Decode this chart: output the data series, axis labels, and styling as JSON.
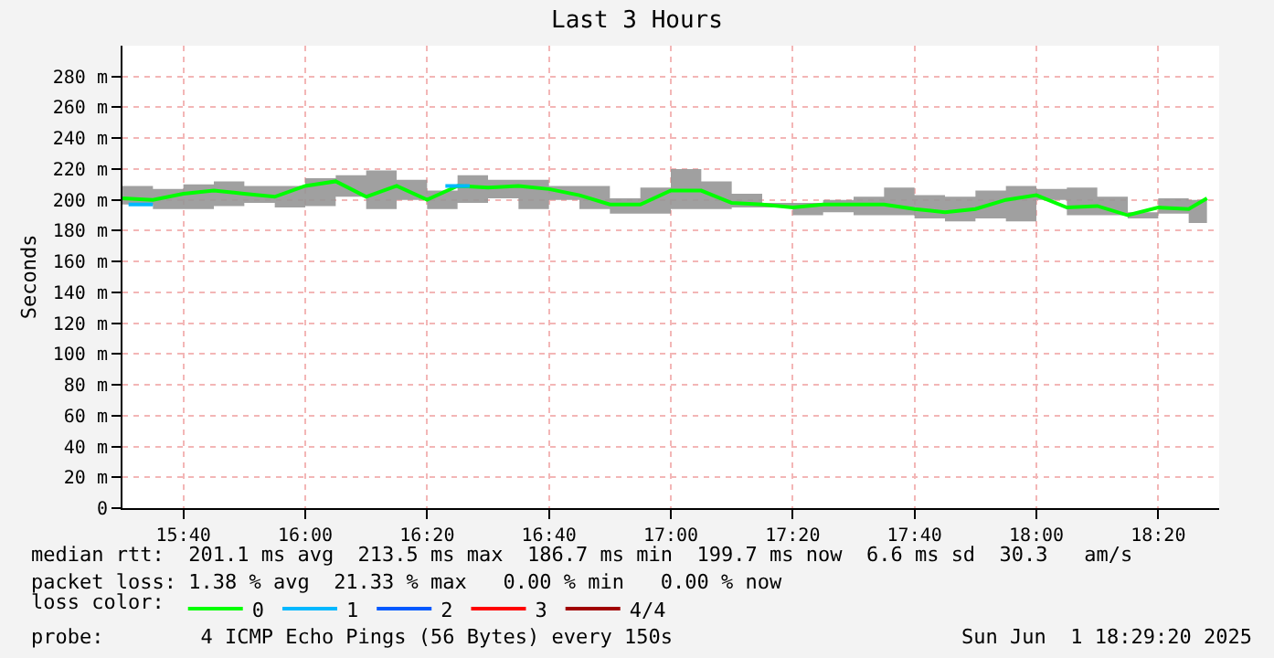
{
  "chart_data": {
    "type": "line",
    "title": "Last 3 Hours",
    "ylabel": "Seconds",
    "x": [
      "2025-06-01T15:30",
      "2025-06-01T15:35",
      "2025-06-01T15:40",
      "2025-06-01T15:45",
      "2025-06-01T15:50",
      "2025-06-01T15:55",
      "2025-06-01T16:00",
      "2025-06-01T16:05",
      "2025-06-01T16:10",
      "2025-06-01T16:15",
      "2025-06-01T16:20",
      "2025-06-01T16:25",
      "2025-06-01T16:30",
      "2025-06-01T16:35",
      "2025-06-01T16:40",
      "2025-06-01T16:45",
      "2025-06-01T16:50",
      "2025-06-01T16:55",
      "2025-06-01T17:00",
      "2025-06-01T17:05",
      "2025-06-01T17:10",
      "2025-06-01T17:15",
      "2025-06-01T17:20",
      "2025-06-01T17:25",
      "2025-06-01T17:30",
      "2025-06-01T17:35",
      "2025-06-01T17:40",
      "2025-06-01T17:45",
      "2025-06-01T17:50",
      "2025-06-01T17:55",
      "2025-06-01T18:00",
      "2025-06-01T18:05",
      "2025-06-01T18:10",
      "2025-06-01T18:15",
      "2025-06-01T18:20",
      "2025-06-01T18:25",
      "2025-06-01T18:28"
    ],
    "series": [
      {
        "name": "0",
        "color": "#00ff00",
        "values": [
          201,
          200,
          204,
          206,
          204,
          202,
          209,
          212,
          202,
          209,
          200,
          209,
          208,
          209,
          207,
          203,
          197,
          197,
          206,
          206,
          198,
          197,
          195,
          197,
          197,
          197,
          194,
          192,
          194,
          200,
          203,
          195,
          196,
          190,
          195,
          194,
          201
        ],
        "lower": [
          197,
          194,
          194,
          196,
          198,
          195,
          196,
          202,
          194,
          200,
          194,
          198,
          201,
          194,
          200,
          194,
          191,
          191,
          194,
          194,
          195,
          195,
          190,
          192,
          190,
          190,
          188,
          186,
          188,
          186,
          200,
          190,
          190,
          188,
          191,
          185,
          189
        ],
        "upper": [
          209,
          207,
          210,
          212,
          209,
          209,
          214,
          216,
          219,
          213,
          206,
          216,
          213,
          213,
          209,
          209,
          201,
          208,
          220,
          212,
          204,
          198,
          198,
          200,
          202,
          208,
          203,
          202,
          206,
          209,
          207,
          208,
          202,
          192,
          201,
          200,
          206
        ]
      },
      {
        "name": "1",
        "color": "#00b8ff",
        "x": [
          "2025-06-01T15:31",
          "2025-06-01T15:35",
          "2025-06-01T16:21",
          "2025-06-01T16:23",
          "2025-06-01T16:27"
        ],
        "values": [
          197,
          197,
          null,
          209,
          209
        ]
      },
      {
        "name": "2",
        "color": "#0059ff",
        "values": [
          null,
          null,
          null,
          null,
          null,
          null,
          null,
          null,
          null,
          null,
          null,
          null,
          null,
          null,
          null,
          null,
          null,
          null,
          null,
          null,
          null,
          null,
          null,
          null,
          null,
          null,
          null,
          null,
          null,
          null,
          null,
          null,
          null,
          null,
          null,
          null,
          null
        ]
      },
      {
        "name": "3",
        "color": "#ff0000",
        "values": [
          null,
          null,
          null,
          null,
          null,
          null,
          null,
          null,
          null,
          null,
          null,
          null,
          null,
          null,
          null,
          null,
          null,
          null,
          null,
          null,
          null,
          null,
          null,
          null,
          null,
          null,
          null,
          null,
          null,
          null,
          null,
          null,
          null,
          null,
          null,
          null,
          null
        ]
      },
      {
        "name": "4/4",
        "color": "#a00000",
        "values": [
          null,
          null,
          null,
          null,
          null,
          null,
          null,
          null,
          null,
          null,
          null,
          null,
          null,
          null,
          null,
          null,
          null,
          null,
          null,
          null,
          null,
          null,
          null,
          null,
          null,
          null,
          null,
          null,
          null,
          null,
          null,
          null,
          null,
          null,
          null,
          null,
          null
        ]
      }
    ],
    "xlim": [
      "2025-06-01T15:30",
      "2025-06-01T18:30"
    ],
    "xticks": [
      {
        "value": "2025-06-01T15:40",
        "label": "15:40"
      },
      {
        "value": "2025-06-01T16:00",
        "label": "16:00"
      },
      {
        "value": "2025-06-01T16:20",
        "label": "16:20"
      },
      {
        "value": "2025-06-01T16:40",
        "label": "16:40"
      },
      {
        "value": "2025-06-01T17:00",
        "label": "17:00"
      },
      {
        "value": "2025-06-01T17:20",
        "label": "17:20"
      },
      {
        "value": "2025-06-01T17:40",
        "label": "17:40"
      },
      {
        "value": "2025-06-01T18:00",
        "label": "18:00"
      },
      {
        "value": "2025-06-01T18:20",
        "label": "18:20"
      }
    ],
    "ylim": [
      0,
      300
    ],
    "yticks": [
      0,
      {
        "value": 20,
        "label": "20 m"
      },
      {
        "value": 40,
        "label": "40 m"
      },
      {
        "value": 60,
        "label": "60 m"
      },
      {
        "value": 80,
        "label": "80 m"
      },
      {
        "value": 100,
        "label": "100 m"
      },
      {
        "value": 120,
        "label": "120 m"
      },
      {
        "value": 140,
        "label": "140 m"
      },
      {
        "value": 160,
        "label": "160 m"
      },
      {
        "value": 180,
        "label": "180 m"
      },
      {
        "value": 200,
        "label": "200 m"
      },
      {
        "value": 220,
        "label": "220 m"
      },
      {
        "value": 240,
        "label": "240 m"
      },
      {
        "value": 260,
        "label": "260 m"
      },
      {
        "value": 280,
        "label": "280 m"
      }
    ],
    "grid": true,
    "legend": "bottom",
    "legend_title": "loss color:",
    "marker": "none",
    "line_style": "solid",
    "annotations": [
      "median rtt:  201.1 ms avg  213.5 ms max  186.7 ms min  199.7 ms now  6.6 ms sd  30.3   am/s",
      "packet loss: 1.38 % avg  21.33 % max   0.00 % min   0.00 % now",
      "probe:        4 ICMP Echo Pings (56 Bytes) every 150s",
      "Sun Jun  1 18:29:20 2025"
    ]
  }
}
